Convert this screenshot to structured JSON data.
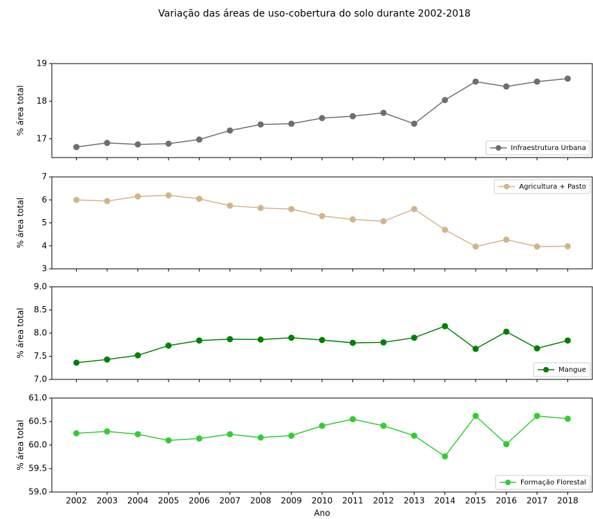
{
  "title": "Variação das áreas de uso-cobertura do solo durante 2002-2018",
  "chart_data": [
    {
      "type": "line",
      "ylabel": "% área total",
      "x": [
        2002,
        2003,
        2004,
        2005,
        2006,
        2007,
        2008,
        2009,
        2010,
        2011,
        2012,
        2013,
        2014,
        2015,
        2016,
        2017,
        2018
      ],
      "series": [
        {
          "name": "Infraestrutura Urbana",
          "color": "#6e6e6e",
          "values": [
            16.78,
            16.89,
            16.85,
            16.87,
            16.98,
            17.22,
            17.38,
            17.4,
            17.55,
            17.6,
            17.69,
            17.4,
            18.03,
            18.52,
            18.39,
            18.52,
            18.6
          ]
        }
      ],
      "xlim": [
        2001.2,
        2018.8
      ],
      "xticks": [
        2002,
        2003,
        2004,
        2005,
        2006,
        2007,
        2008,
        2009,
        2010,
        2011,
        2012,
        2013,
        2014,
        2015,
        2016,
        2017,
        2018
      ],
      "ylim": [
        16.5,
        19
      ],
      "yticks": [
        17,
        18,
        19
      ],
      "legend": "lower right"
    },
    {
      "type": "line",
      "ylabel": "% área total",
      "x": [
        2002,
        2003,
        2004,
        2005,
        2006,
        2007,
        2008,
        2009,
        2010,
        2011,
        2012,
        2013,
        2014,
        2015,
        2016,
        2017,
        2018
      ],
      "series": [
        {
          "name": "Agricultura + Pasto",
          "color": "#d2b48c",
          "values": [
            6.0,
            5.95,
            6.15,
            6.2,
            6.05,
            5.75,
            5.65,
            5.6,
            5.3,
            5.15,
            5.07,
            5.6,
            4.7,
            3.97,
            4.27,
            3.97,
            3.98
          ]
        }
      ],
      "xlim": [
        2001.2,
        2018.8
      ],
      "xticks": [
        2002,
        2003,
        2004,
        2005,
        2006,
        2007,
        2008,
        2009,
        2010,
        2011,
        2012,
        2013,
        2014,
        2015,
        2016,
        2017,
        2018
      ],
      "ylim": [
        3,
        7
      ],
      "yticks": [
        3,
        4,
        5,
        6,
        7
      ],
      "legend": "upper right"
    },
    {
      "type": "line",
      "ylabel": "% área total",
      "x": [
        2002,
        2003,
        2004,
        2005,
        2006,
        2007,
        2008,
        2009,
        2010,
        2011,
        2012,
        2013,
        2014,
        2015,
        2016,
        2017,
        2018
      ],
      "series": [
        {
          "name": "Mangue",
          "color": "#008000",
          "values": [
            7.36,
            7.43,
            7.52,
            7.73,
            7.84,
            7.87,
            7.86,
            7.9,
            7.85,
            7.79,
            7.8,
            7.9,
            8.15,
            7.66,
            8.03,
            7.67,
            7.84
          ]
        }
      ],
      "xlim": [
        2001.2,
        2018.8
      ],
      "xticks": [
        2002,
        2003,
        2004,
        2005,
        2006,
        2007,
        2008,
        2009,
        2010,
        2011,
        2012,
        2013,
        2014,
        2015,
        2016,
        2017,
        2018
      ],
      "ylim": [
        7,
        9
      ],
      "yticks": [
        {
          "value": 7,
          "label": "7.0"
        },
        7.5,
        {
          "value": 8,
          "label": "8.0"
        },
        8.5,
        {
          "value": 9,
          "label": "9.0"
        }
      ],
      "legend": "lower right"
    },
    {
      "type": "line",
      "ylabel": "% área total",
      "xlabel": "Ano",
      "x": [
        2002,
        2003,
        2004,
        2005,
        2006,
        2007,
        2008,
        2009,
        2010,
        2011,
        2012,
        2013,
        2014,
        2015,
        2016,
        2017,
        2018
      ],
      "series": [
        {
          "name": "Formação Florestal",
          "color": "#32cd32",
          "values": [
            60.25,
            60.29,
            60.23,
            60.1,
            60.14,
            60.23,
            60.16,
            60.2,
            60.41,
            60.55,
            60.41,
            60.2,
            59.76,
            60.62,
            60.02,
            60.62,
            60.56
          ]
        }
      ],
      "xlim": [
        2001.2,
        2018.8
      ],
      "xticks": [
        2002,
        2003,
        2004,
        2005,
        2006,
        2007,
        2008,
        2009,
        2010,
        2011,
        2012,
        2013,
        2014,
        2015,
        2016,
        2017,
        2018
      ],
      "ylim": [
        59,
        61
      ],
      "yticks": [
        {
          "value": 59,
          "label": "59.0"
        },
        59.5,
        {
          "value": 60,
          "label": "60.0"
        },
        60.5,
        {
          "value": 61,
          "label": "61.0"
        }
      ],
      "legend": "lower right"
    }
  ]
}
